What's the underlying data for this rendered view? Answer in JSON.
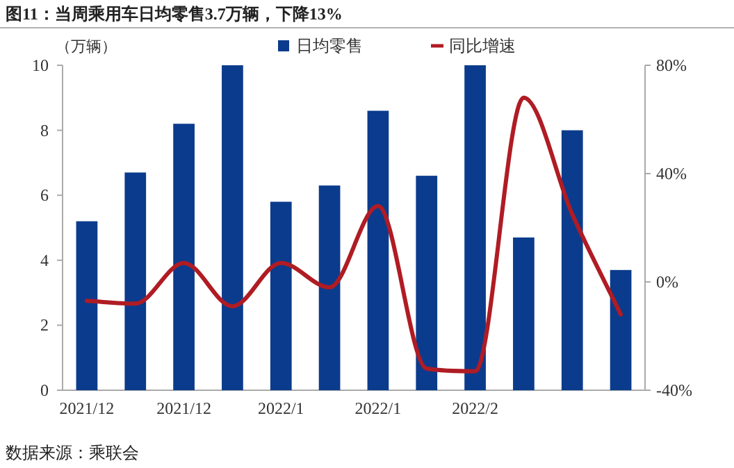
{
  "chart_data": {
    "type": "bar",
    "title": "图11：当周乘用车日均零售3.7万辆，下降13%",
    "ylabel": "（万辆）",
    "categories": [
      "2021/12",
      null,
      "2021/12",
      null,
      "2022/1",
      null,
      "2022/1",
      null,
      "2022/2",
      null,
      null,
      null
    ],
    "series": [
      {
        "name": "日均零售",
        "color": "#0b3b8c",
        "values": [
          5.2,
          6.7,
          8.2,
          10.0,
          5.8,
          6.3,
          8.6,
          6.6,
          10.0,
          4.7,
          8.0,
          3.7
        ]
      },
      {
        "name": "同比增速",
        "type": "line",
        "axis": "y2",
        "color": "#b01c24",
        "values": [
          -7,
          -8,
          7,
          -9,
          7,
          -2,
          28,
          -32,
          -33,
          68,
          25,
          -12
        ]
      }
    ],
    "ylim": [
      0,
      10
    ],
    "yticks": [
      0,
      2,
      4,
      6,
      8,
      10
    ],
    "y2lim": [
      -40,
      80
    ],
    "y2ticks": [
      {
        "value": -40,
        "label": "-40%"
      },
      {
        "value": 0,
        "label": "0%"
      },
      {
        "value": 40,
        "label": "40%"
      },
      {
        "value": 80,
        "label": "80%"
      }
    ],
    "legend": "top",
    "grid": false,
    "annotations": [
      "数据来源：乘联会"
    ]
  }
}
